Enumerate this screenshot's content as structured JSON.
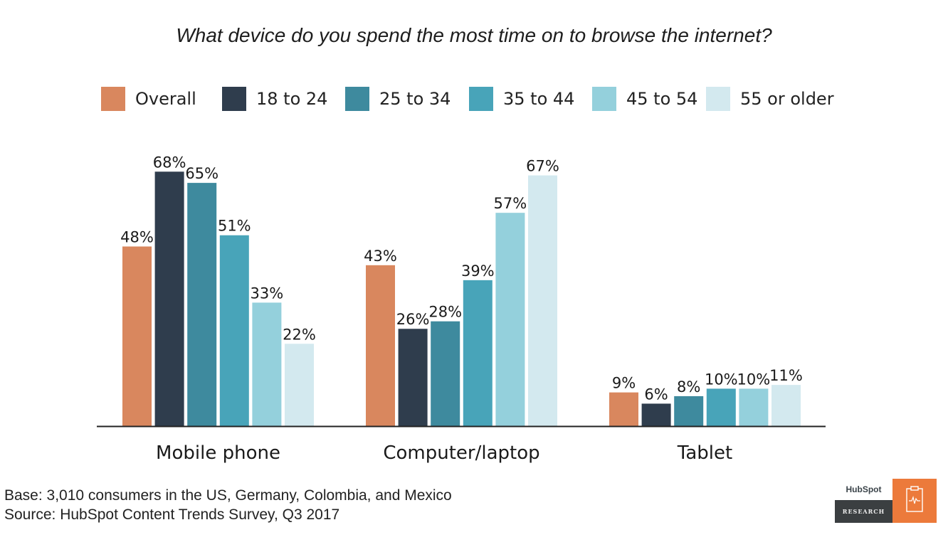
{
  "chart_data": {
    "type": "bar",
    "title": "What device do you spend the most time on to browse the internet?",
    "categories": [
      "Mobile phone",
      "Computer/laptop",
      "Tablet"
    ],
    "series": [
      {
        "name": "Overall",
        "color": "#d9875e",
        "values": [
          48,
          43,
          9
        ]
      },
      {
        "name": "18 to 24",
        "color": "#2f3d4d",
        "values": [
          68,
          26,
          6
        ]
      },
      {
        "name": "25 to 34",
        "color": "#3e8a9e",
        "values": [
          65,
          28,
          8
        ]
      },
      {
        "name": "35 to 44",
        "color": "#48a4b9",
        "values": [
          51,
          39,
          10
        ]
      },
      {
        "name": "45 to 54",
        "color": "#94d0dc",
        "values": [
          33,
          57,
          10
        ]
      },
      {
        "name": "55 or older",
        "color": "#d3e9ef",
        "values": [
          22,
          67,
          11
        ]
      }
    ],
    "value_suffix": "%",
    "xlabel": "",
    "ylabel": "",
    "ylim": [
      0,
      70
    ],
    "grid": false,
    "legend_position": "top"
  },
  "footnote": {
    "base": "Base: 3,010 consumers in the US, Germany, Colombia, and Mexico",
    "source": "Source: HubSpot Content Trends Survey, Q3 2017"
  },
  "logo": {
    "brand": "HubSpot",
    "label": "RESEARCH",
    "icon": "clipboard-pulse-icon"
  }
}
